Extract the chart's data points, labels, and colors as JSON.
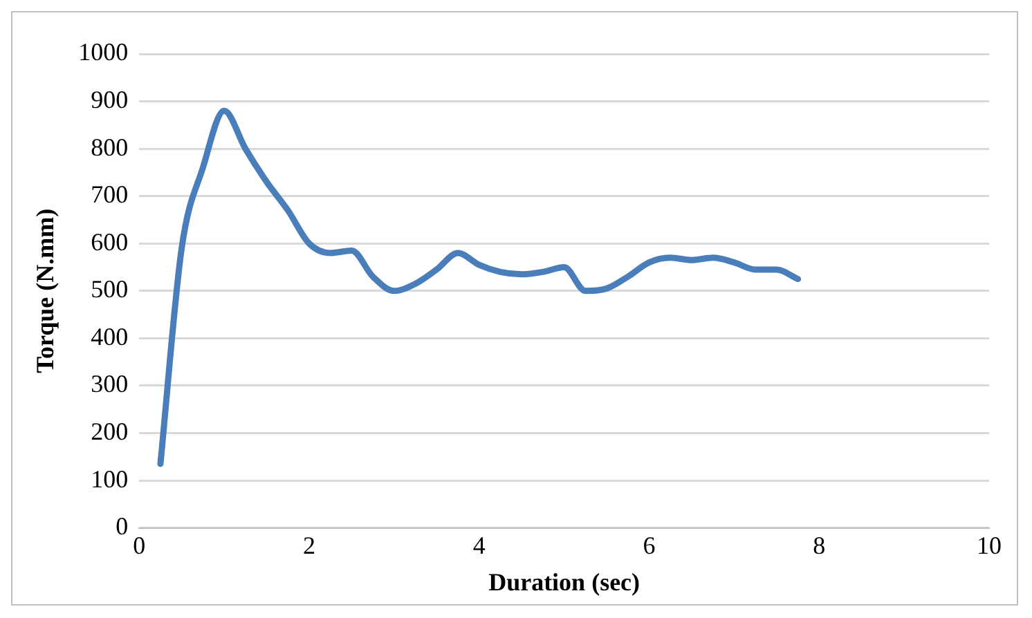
{
  "chart_data": {
    "type": "line",
    "xlabel": "Duration (sec)",
    "ylabel": "Torque (N.mm)",
    "x": [
      0.25,
      0.5,
      0.75,
      1,
      1.25,
      1.5,
      1.75,
      2,
      2.25,
      2.5,
      2.75,
      3,
      3.25,
      3.5,
      3.75,
      4,
      4.25,
      4.5,
      4.75,
      5,
      5.25,
      5.5,
      5.75,
      6,
      6.25,
      6.5,
      6.75,
      7,
      7.25,
      7.5,
      7.75
    ],
    "series": [
      {
        "color": "#4a7ebb",
        "values": [
          135,
          590,
          760,
          880,
          800,
          730,
          670,
          600,
          580,
          585,
          530,
          500,
          515,
          545,
          580,
          555,
          540,
          535,
          540,
          550,
          500,
          505,
          530,
          560,
          570,
          565,
          570,
          560,
          545,
          545,
          525
        ]
      }
    ],
    "xlim": [
      0,
      10
    ],
    "xticks": [
      0,
      2,
      4,
      6,
      8,
      10
    ],
    "ylim": [
      0,
      1000
    ],
    "yticks": [
      0,
      100,
      200,
      300,
      400,
      500,
      600,
      700,
      800,
      900,
      1000
    ],
    "grid": "y",
    "legend": false,
    "marker": "none",
    "line_style": "solid"
  }
}
